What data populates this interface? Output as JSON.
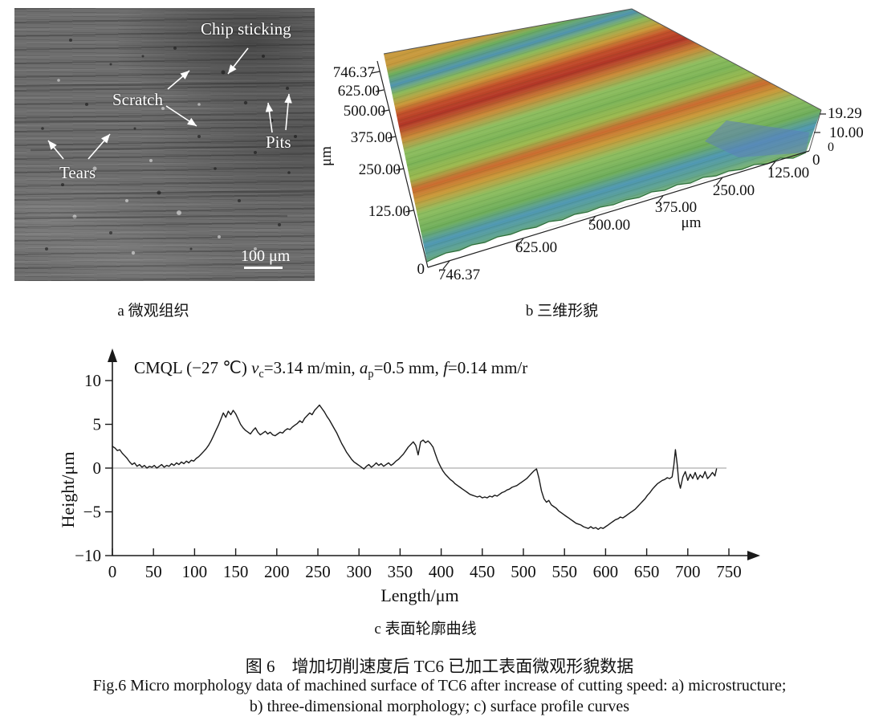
{
  "panel_a": {
    "caption": "a 微观组织",
    "annotations": {
      "chip_sticking": "Chip sticking",
      "scratch": "Scratch",
      "pits": "Pits",
      "tears": "Tears"
    },
    "scale_bar_label": "100 μm"
  },
  "panel_b": {
    "caption": "b 三维形貌",
    "y_axis": {
      "unit": "μm",
      "ticks": [
        "746.37",
        "625.00",
        "500.00",
        "375.00",
        "250.00",
        "125.00"
      ],
      "origin": "0"
    },
    "x_axis": {
      "unit": "μm",
      "first": "746.37",
      "ticks": [
        "625.00",
        "500.00",
        "375.00",
        "250.00",
        "125.00"
      ],
      "origin": "0"
    },
    "z_axis": {
      "ticks": [
        "19.29",
        "10.00",
        "0"
      ]
    },
    "colors": {
      "ridge_red": "#b13527",
      "ridge_orange": "#c99a3a",
      "valley_blue": "#4f93ae",
      "base_green": "#7db457"
    }
  },
  "panel_c": {
    "caption": "c 表面轮廓曲线",
    "x_label": "Length/μm",
    "y_label": "Height/μm",
    "annotation": {
      "prefix": "CMQL (−27 ℃) ",
      "v": "v",
      "v_sub": "c",
      "v_val": "=3.14 m/min, ",
      "a": "a",
      "a_sub": "p",
      "a_val": "=0.5 mm, ",
      "f": "f",
      "f_val": "=0.14 mm/r"
    }
  },
  "figure_caption": {
    "cn": "图 6　增加切削速度后 TC6 已加工表面微观形貌数据",
    "en_line1": "Fig.6 Micro morphology data of machined surface of TC6 after increase of cutting speed: a) microstructure;",
    "en_line2": "b) three-dimensional morphology; c) surface profile curves"
  },
  "chart_data": [
    {
      "id": "panel_b_surface",
      "type": "heatmap",
      "title": "三维形貌 (3D surface morphology)",
      "x_ticks_um": [
        746.37,
        625.0,
        500.0,
        375.0,
        250.0,
        125.0,
        0
      ],
      "y_ticks_um": [
        746.37,
        625.0,
        500.0,
        375.0,
        250.0,
        125.0,
        0
      ],
      "z_ticks_um": [
        19.29,
        10.0,
        0
      ],
      "x_range_um": [
        0,
        746.37
      ],
      "y_range_um": [
        0,
        746.37
      ],
      "z_range_um": [
        0,
        19.29
      ],
      "units": "μm"
    },
    {
      "id": "panel_c_profile",
      "type": "line",
      "title": "CMQL (−27 ℃) vc=3.14 m/min, ap=0.5 mm, f=0.14 mm/r",
      "xlabel": "Length/μm",
      "ylabel": "Height/μm",
      "xlim": [
        0,
        750
      ],
      "ylim": [
        -10,
        10
      ],
      "x_ticks": [
        0,
        50,
        100,
        150,
        200,
        250,
        300,
        350,
        400,
        450,
        500,
        550,
        600,
        650,
        700,
        750
      ],
      "y_ticks": [
        10,
        5,
        0,
        -5,
        -10
      ],
      "y_tick_labels": [
        "10",
        "5",
        "0",
        "−5",
        "−10"
      ],
      "zero_line": true,
      "points": [
        [
          0,
          2.5
        ],
        [
          3,
          2.3
        ],
        [
          6,
          2.0
        ],
        [
          9,
          2.1
        ],
        [
          12,
          1.7
        ],
        [
          15,
          1.4
        ],
        [
          18,
          1.1
        ],
        [
          21,
          0.7
        ],
        [
          24,
          0.4
        ],
        [
          27,
          0.6
        ],
        [
          30,
          0.2
        ],
        [
          33,
          0.4
        ],
        [
          36,
          0.1
        ],
        [
          39,
          0.3
        ],
        [
          42,
          0.0
        ],
        [
          45,
          0.2
        ],
        [
          48,
          0.1
        ],
        [
          51,
          0.3
        ],
        [
          54,
          0.0
        ],
        [
          57,
          0.2
        ],
        [
          60,
          0.4
        ],
        [
          63,
          0.1
        ],
        [
          66,
          0.3
        ],
        [
          69,
          0.2
        ],
        [
          72,
          0.5
        ],
        [
          75,
          0.3
        ],
        [
          78,
          0.6
        ],
        [
          81,
          0.4
        ],
        [
          84,
          0.7
        ],
        [
          87,
          0.5
        ],
        [
          90,
          0.8
        ],
        [
          93,
          0.6
        ],
        [
          96,
          0.9
        ],
        [
          99,
          0.8
        ],
        [
          102,
          1.1
        ],
        [
          105,
          1.3
        ],
        [
          108,
          1.6
        ],
        [
          111,
          1.9
        ],
        [
          114,
          2.2
        ],
        [
          117,
          2.6
        ],
        [
          120,
          3.1
        ],
        [
          123,
          3.7
        ],
        [
          126,
          4.3
        ],
        [
          129,
          4.9
        ],
        [
          132,
          5.6
        ],
        [
          135,
          6.3
        ],
        [
          138,
          5.8
        ],
        [
          141,
          6.5
        ],
        [
          144,
          6.1
        ],
        [
          147,
          6.6
        ],
        [
          150,
          6.2
        ],
        [
          153,
          5.6
        ],
        [
          156,
          5.0
        ],
        [
          159,
          4.6
        ],
        [
          162,
          4.3
        ],
        [
          165,
          4.1
        ],
        [
          168,
          3.9
        ],
        [
          171,
          4.3
        ],
        [
          174,
          4.6
        ],
        [
          177,
          4.1
        ],
        [
          180,
          3.8
        ],
        [
          183,
          4.0
        ],
        [
          186,
          4.2
        ],
        [
          189,
          3.9
        ],
        [
          192,
          4.1
        ],
        [
          195,
          3.8
        ],
        [
          198,
          3.7
        ],
        [
          201,
          3.9
        ],
        [
          204,
          4.1
        ],
        [
          207,
          4.0
        ],
        [
          210,
          4.3
        ],
        [
          213,
          4.5
        ],
        [
          216,
          4.4
        ],
        [
          219,
          4.7
        ],
        [
          222,
          4.9
        ],
        [
          225,
          5.1
        ],
        [
          228,
          5.4
        ],
        [
          231,
          5.2
        ],
        [
          234,
          5.7
        ],
        [
          237,
          6.0
        ],
        [
          240,
          6.3
        ],
        [
          243,
          6.1
        ],
        [
          246,
          6.6
        ],
        [
          249,
          6.9
        ],
        [
          252,
          7.2
        ],
        [
          255,
          6.8
        ],
        [
          258,
          6.4
        ],
        [
          261,
          5.9
        ],
        [
          264,
          5.5
        ],
        [
          267,
          5.0
        ],
        [
          270,
          4.5
        ],
        [
          273,
          4.0
        ],
        [
          276,
          3.4
        ],
        [
          279,
          2.8
        ],
        [
          282,
          2.3
        ],
        [
          285,
          1.8
        ],
        [
          288,
          1.4
        ],
        [
          291,
          1.0
        ],
        [
          294,
          0.7
        ],
        [
          297,
          0.5
        ],
        [
          300,
          0.3
        ],
        [
          303,
          0.1
        ],
        [
          306,
          -0.1
        ],
        [
          309,
          0.2
        ],
        [
          312,
          0.4
        ],
        [
          315,
          0.1
        ],
        [
          318,
          0.3
        ],
        [
          321,
          0.6
        ],
        [
          324,
          0.3
        ],
        [
          327,
          0.5
        ],
        [
          330,
          0.2
        ],
        [
          333,
          0.4
        ],
        [
          336,
          0.6
        ],
        [
          339,
          0.3
        ],
        [
          342,
          0.5
        ],
        [
          345,
          0.8
        ],
        [
          348,
          1.0
        ],
        [
          351,
          1.3
        ],
        [
          354,
          1.6
        ],
        [
          357,
          2.0
        ],
        [
          360,
          2.4
        ],
        [
          363,
          2.7
        ],
        [
          366,
          3.0
        ],
        [
          369,
          2.6
        ],
        [
          372,
          1.5
        ],
        [
          375,
          3.0
        ],
        [
          378,
          3.2
        ],
        [
          381,
          2.9
        ],
        [
          384,
          3.1
        ],
        [
          387,
          2.8
        ],
        [
          390,
          2.4
        ],
        [
          393,
          1.6
        ],
        [
          396,
          0.8
        ],
        [
          399,
          0.2
        ],
        [
          402,
          -0.3
        ],
        [
          405,
          -0.7
        ],
        [
          408,
          -1.0
        ],
        [
          411,
          -1.3
        ],
        [
          414,
          -1.5
        ],
        [
          417,
          -1.8
        ],
        [
          420,
          -2.0
        ],
        [
          423,
          -2.2
        ],
        [
          426,
          -2.4
        ],
        [
          429,
          -2.6
        ],
        [
          432,
          -2.8
        ],
        [
          435,
          -3.0
        ],
        [
          438,
          -3.1
        ],
        [
          441,
          -3.2
        ],
        [
          444,
          -3.3
        ],
        [
          447,
          -3.2
        ],
        [
          450,
          -3.4
        ],
        [
          453,
          -3.3
        ],
        [
          456,
          -3.4
        ],
        [
          459,
          -3.2
        ],
        [
          462,
          -3.3
        ],
        [
          465,
          -3.1
        ],
        [
          468,
          -3.2
        ],
        [
          471,
          -3.0
        ],
        [
          474,
          -2.8
        ],
        [
          477,
          -2.7
        ],
        [
          480,
          -2.5
        ],
        [
          483,
          -2.4
        ],
        [
          486,
          -2.2
        ],
        [
          489,
          -2.1
        ],
        [
          492,
          -2.0
        ],
        [
          495,
          -1.8
        ],
        [
          498,
          -1.6
        ],
        [
          501,
          -1.4
        ],
        [
          504,
          -1.2
        ],
        [
          507,
          -0.9
        ],
        [
          510,
          -0.6
        ],
        [
          513,
          -0.3
        ],
        [
          516,
          -0.1
        ],
        [
          519,
          -1.2
        ],
        [
          522,
          -2.6
        ],
        [
          525,
          -3.5
        ],
        [
          528,
          -3.9
        ],
        [
          531,
          -3.7
        ],
        [
          534,
          -4.2
        ],
        [
          537,
          -4.4
        ],
        [
          540,
          -4.6
        ],
        [
          543,
          -4.9
        ],
        [
          546,
          -5.1
        ],
        [
          549,
          -5.3
        ],
        [
          552,
          -5.5
        ],
        [
          555,
          -5.7
        ],
        [
          558,
          -5.9
        ],
        [
          561,
          -6.1
        ],
        [
          564,
          -6.3
        ],
        [
          567,
          -6.4
        ],
        [
          570,
          -6.5
        ],
        [
          573,
          -6.7
        ],
        [
          576,
          -6.8
        ],
        [
          579,
          -6.9
        ],
        [
          582,
          -6.7
        ],
        [
          585,
          -6.9
        ],
        [
          588,
          -6.8
        ],
        [
          591,
          -7.0
        ],
        [
          594,
          -6.8
        ],
        [
          597,
          -6.9
        ],
        [
          600,
          -6.7
        ],
        [
          603,
          -6.5
        ],
        [
          606,
          -6.3
        ],
        [
          609,
          -6.1
        ],
        [
          612,
          -5.9
        ],
        [
          615,
          -5.8
        ],
        [
          618,
          -5.6
        ],
        [
          621,
          -5.7
        ],
        [
          624,
          -5.5
        ],
        [
          627,
          -5.3
        ],
        [
          630,
          -5.1
        ],
        [
          633,
          -4.9
        ],
        [
          636,
          -4.7
        ],
        [
          639,
          -4.4
        ],
        [
          642,
          -4.1
        ],
        [
          645,
          -3.8
        ],
        [
          648,
          -3.5
        ],
        [
          651,
          -3.1
        ],
        [
          654,
          -2.8
        ],
        [
          657,
          -2.4
        ],
        [
          660,
          -2.1
        ],
        [
          663,
          -1.8
        ],
        [
          666,
          -1.6
        ],
        [
          669,
          -1.4
        ],
        [
          672,
          -1.3
        ],
        [
          675,
          -1.1
        ],
        [
          678,
          -1.2
        ],
        [
          681,
          -1.0
        ],
        [
          683,
          0.3
        ],
        [
          685,
          2.1
        ],
        [
          687,
          0.5
        ],
        [
          689,
          -1.5
        ],
        [
          691,
          -2.3
        ],
        [
          694,
          -1.0
        ],
        [
          697,
          -0.4
        ],
        [
          700,
          -1.4
        ],
        [
          703,
          -0.7
        ],
        [
          706,
          -1.2
        ],
        [
          709,
          -0.5
        ],
        [
          712,
          -1.3
        ],
        [
          715,
          -0.8
        ],
        [
          718,
          -1.1
        ],
        [
          721,
          -0.4
        ],
        [
          724,
          -1.2
        ],
        [
          727,
          -0.9
        ],
        [
          730,
          -0.5
        ],
        [
          733,
          -0.9
        ],
        [
          735,
          -0.1
        ]
      ]
    }
  ]
}
